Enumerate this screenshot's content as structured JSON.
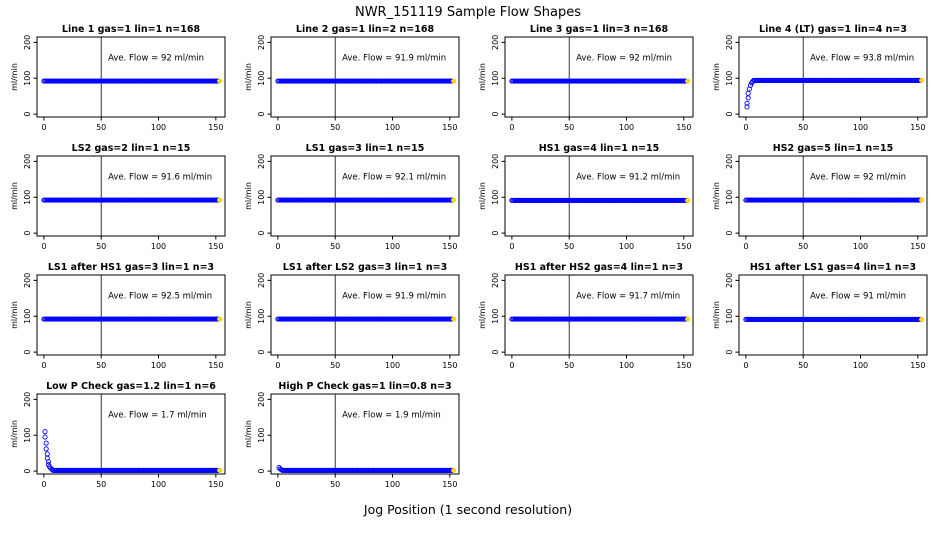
{
  "page": {
    "title": "NWR_151119  Sample Flow Shapes",
    "xlabel": "Jog Position (1 second resolution)"
  },
  "chart_data": {
    "type": "scatter",
    "title": "NWR_151119  Sample Flow Shapes",
    "xlabel": "Jog Position (1 second resolution)",
    "ylabel": "ml/min",
    "grid_layout": {
      "rows": 4,
      "cols": 4,
      "panel_count": 14
    },
    "xlim": [
      -6,
      158
    ],
    "ylim": [
      -8,
      215
    ],
    "x_ticks": [
      0,
      50,
      100,
      150
    ],
    "y_ticks": [
      0,
      100,
      200
    ],
    "vline_x": 50,
    "point_color": "#0000ff",
    "end_marker_color": "#ffd700",
    "x_step": 1,
    "panels": [
      {
        "title": "Line 1 gas=1 lin=1 n=168",
        "ave_flow": 92,
        "ave_label": "Ave. Flow =  92  ml/min",
        "flat_y": 92,
        "flat_from": 0,
        "x_end": 152,
        "head": []
      },
      {
        "title": "Line 2 gas=1 lin=2 n=168",
        "ave_flow": 91.9,
        "ave_label": "Ave. Flow =  91.9  ml/min",
        "flat_y": 92,
        "flat_from": 0,
        "x_end": 152,
        "head": []
      },
      {
        "title": "Line 3 gas=1 lin=3 n=168",
        "ave_flow": 92,
        "ave_label": "Ave. Flow =  92  ml/min",
        "flat_y": 92,
        "flat_from": 0,
        "x_end": 152,
        "head": []
      },
      {
        "title": "Line 4 (LT) gas=1 lin=4 n=3",
        "ave_flow": 93.8,
        "ave_label": "Ave. Flow =  93.8  ml/min",
        "flat_y": 94,
        "flat_from": 7,
        "x_end": 152,
        "head": [
          [
            1,
            20
          ],
          [
            1,
            30
          ],
          [
            2,
            45
          ],
          [
            2,
            58
          ],
          [
            3,
            70
          ],
          [
            4,
            80
          ],
          [
            5,
            87
          ],
          [
            6,
            91
          ]
        ]
      },
      {
        "title": "LS2 gas=2 lin=1 n=15",
        "ave_flow": 91.6,
        "ave_label": "Ave. Flow =  91.6  ml/min",
        "flat_y": 92,
        "flat_from": 0,
        "x_end": 152,
        "head": []
      },
      {
        "title": "LS1 gas=3 lin=1 n=15",
        "ave_flow": 92.1,
        "ave_label": "Ave. Flow =  92.1  ml/min",
        "flat_y": 92,
        "flat_from": 0,
        "x_end": 152,
        "head": []
      },
      {
        "title": "HS1 gas=4 lin=1 n=15",
        "ave_flow": 91.2,
        "ave_label": "Ave. Flow =  91.2  ml/min",
        "flat_y": 91,
        "flat_from": 0,
        "x_end": 152,
        "head": []
      },
      {
        "title": "HS2 gas=5 lin=1 n=15",
        "ave_flow": 92,
        "ave_label": "Ave. Flow =  92  ml/min",
        "flat_y": 92,
        "flat_from": 0,
        "x_end": 152,
        "head": []
      },
      {
        "title": "LS1 after HS1 gas=3 lin=1 n=3",
        "ave_flow": 92.5,
        "ave_label": "Ave. Flow =  92.5  ml/min",
        "flat_y": 92,
        "flat_from": 0,
        "x_end": 152,
        "head": []
      },
      {
        "title": "LS1 after LS2 gas=3 lin=1 n=3",
        "ave_flow": 91.9,
        "ave_label": "Ave. Flow =  91.9  ml/min",
        "flat_y": 92,
        "flat_from": 0,
        "x_end": 152,
        "head": []
      },
      {
        "title": "HS1 after HS2 gas=4 lin=1 n=3",
        "ave_flow": 91.7,
        "ave_label": "Ave. Flow =  91.7  ml/min",
        "flat_y": 92,
        "flat_from": 0,
        "x_end": 152,
        "head": []
      },
      {
        "title": "HS1 after LS1 gas=4 lin=1 n=3",
        "ave_flow": 91,
        "ave_label": "Ave. Flow =  91  ml/min",
        "flat_y": 91,
        "flat_from": 0,
        "x_end": 152,
        "head": []
      },
      {
        "title": "Low P Check gas=1.2 lin=1 n=6",
        "ave_flow": 1.7,
        "ave_label": "Ave. Flow =  1.7  ml/min",
        "flat_y": 2,
        "flat_from": 8,
        "x_end": 152,
        "head": [
          [
            1,
            110
          ],
          [
            1,
            95
          ],
          [
            2,
            78
          ],
          [
            2,
            62
          ],
          [
            3,
            48
          ],
          [
            3,
            36
          ],
          [
            4,
            26
          ],
          [
            4,
            18
          ],
          [
            5,
            12
          ],
          [
            6,
            8
          ],
          [
            7,
            5
          ]
        ]
      },
      {
        "title": "High P Check gas=1 lin=0.8 n=3",
        "ave_flow": 1.9,
        "ave_label": "Ave. Flow =  1.9  ml/min",
        "flat_y": 2,
        "flat_from": 4,
        "x_end": 152,
        "head": [
          [
            1,
            10
          ],
          [
            2,
            6
          ],
          [
            3,
            4
          ]
        ]
      }
    ]
  }
}
